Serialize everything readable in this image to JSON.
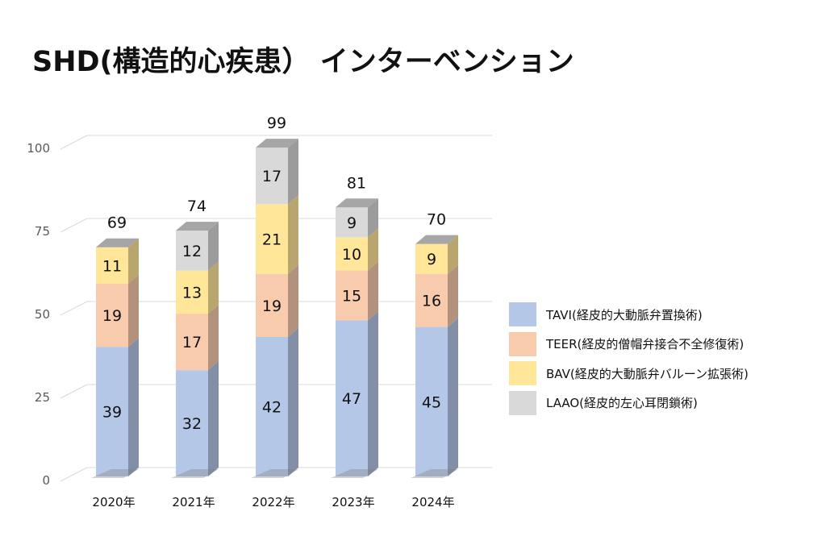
{
  "chart_data": {
    "type": "bar",
    "stacked": true,
    "style": "3d",
    "title": "SHD(構造的心疾患） インターベンション",
    "categories": [
      "2020年",
      "2021年",
      "2022年",
      "2023年",
      "2024年"
    ],
    "series": [
      {
        "name": "TAVI(経皮的大動脈弁置換術)",
        "color": "#b4c7e7",
        "values": [
          39,
          32,
          42,
          47,
          45
        ]
      },
      {
        "name": "TEER(経皮的僧帽弁接合不全修復術)",
        "color": "#f8cbad",
        "values": [
          19,
          17,
          19,
          15,
          16
        ]
      },
      {
        "name": "BAV(経皮的大動脈弁バルーン拡張術)",
        "color": "#ffe699",
        "values": [
          11,
          13,
          21,
          10,
          9
        ]
      },
      {
        "name": "LAAO(経皮的左心耳閉鎖術)",
        "color": "#d9d9d9",
        "values": [
          0,
          12,
          17,
          9,
          0
        ]
      }
    ],
    "totals": [
      69,
      74,
      99,
      81,
      70
    ],
    "y_ticks": [
      0,
      25,
      50,
      75,
      100
    ],
    "ylim": [
      0,
      100
    ],
    "grid": true,
    "legend_position": "right",
    "xlabel": "",
    "ylabel": ""
  }
}
